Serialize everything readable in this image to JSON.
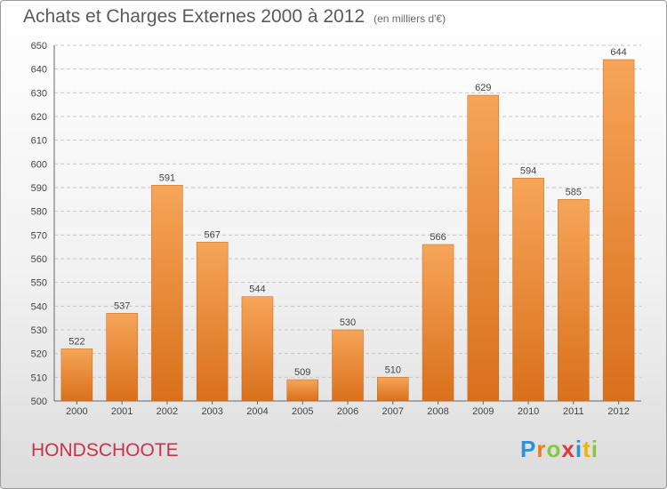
{
  "chart_data": {
    "type": "bar",
    "title": "Achats et Charges Externes 2000 à 2012",
    "subtitle": "(en milliers d'€)",
    "categories": [
      "2000",
      "2001",
      "2002",
      "2003",
      "2004",
      "2005",
      "2006",
      "2007",
      "2008",
      "2009",
      "2010",
      "2011",
      "2012"
    ],
    "values": [
      522,
      537,
      591,
      567,
      544,
      509,
      530,
      510,
      566,
      629,
      594,
      585,
      644
    ],
    "ylim": [
      500,
      650
    ],
    "yticks": [
      500,
      510,
      520,
      530,
      540,
      550,
      560,
      570,
      580,
      590,
      600,
      610,
      620,
      630,
      640,
      650
    ],
    "grid": true,
    "bar_color": "#f0933c"
  },
  "footer": {
    "commune": "HONDSCHOOTE",
    "logo_letters": [
      "P",
      "r",
      "o",
      "x",
      "i",
      "t",
      "i"
    ],
    "logo_colors": [
      "#2f8fd8",
      "#f07b1f",
      "#8cc63f",
      "#e03a3a",
      "#2f8fd8",
      "#f0b400",
      "#8cc63f"
    ]
  }
}
